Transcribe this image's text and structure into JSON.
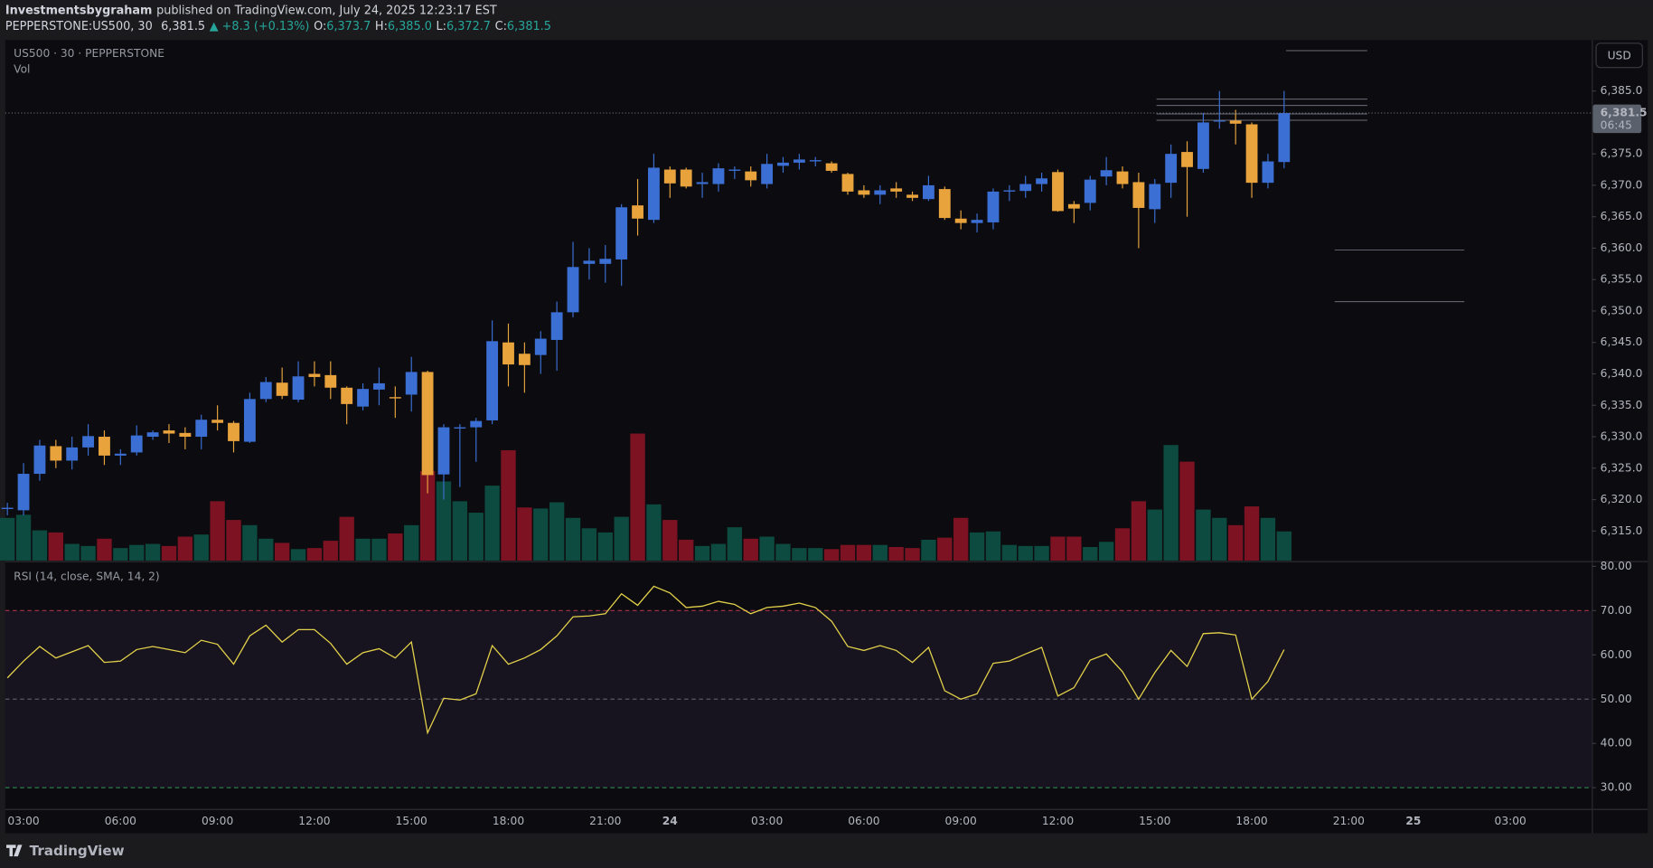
{
  "header": {
    "author": "Investmentsbygraham",
    "published": "published on TradingView.com, July 24, 2025 12:23:17 EST",
    "symbol": "PEPPERSTONE:US500, 30",
    "last": "6,381.5",
    "change": "▲ +8.3 (+0.13%)",
    "ohlc": [
      {
        "label": "O:",
        "value": "6,373.7"
      },
      {
        "label": "H:",
        "value": "6,385.0"
      },
      {
        "label": "L:",
        "value": "6,372.7"
      },
      {
        "label": "C:",
        "value": "6,381.5"
      }
    ]
  },
  "footer": "TradingView",
  "chart_data": [
    {
      "type": "candlestick",
      "title": "US500 · 30 · PEPPERSTONE",
      "volume_title": "Vol",
      "currency": "USD",
      "categories": [
        null,
        "03:00",
        null,
        null,
        null,
        null,
        null,
        "06:00",
        null,
        null,
        null,
        null,
        null,
        "09:00",
        null,
        null,
        null,
        null,
        null,
        "12:00",
        null,
        null,
        null,
        null,
        null,
        "15:00",
        null,
        null,
        null,
        null,
        null,
        "18:00",
        null,
        null,
        null,
        null,
        null,
        "21:00",
        null,
        null,
        null,
        "24",
        null,
        null,
        null,
        null,
        null,
        "03:00",
        null,
        null,
        null,
        null,
        null,
        "06:00",
        null,
        null,
        null,
        null,
        null,
        "09:00",
        null,
        null,
        null,
        null,
        null,
        "12:00",
        null,
        null,
        null,
        null,
        null,
        "15:00",
        null,
        null,
        null,
        null,
        null,
        "18:00",
        null,
        null,
        null,
        null,
        null,
        "21:00",
        null,
        null,
        null,
        "25",
        null,
        null,
        null,
        null,
        null,
        "03:00",
        null,
        null,
        null,
        null
      ],
      "open": [
        6318.5,
        6318.3,
        6324.1,
        6328.5,
        6326.2,
        6328.3,
        6330,
        6327,
        6327.5,
        6330,
        6331,
        6330.6,
        6330,
        6332.7,
        6332.2,
        6329.2,
        6336,
        6338.6,
        6335.9,
        6340,
        6339.8,
        6337.8,
        6334.8,
        6337.5,
        6336.3,
        6336.7,
        6340.3,
        6324,
        6331.3,
        6331.5,
        6332.6,
        6345,
        6343.2,
        6343,
        6345.4,
        6349.8,
        6357.5,
        6357.5,
        6358.2,
        6366.8,
        6364.5,
        6372.5,
        6372.5,
        6370.2,
        6370.2,
        6372.3,
        6372.2,
        6370.2,
        6373.1,
        6373.6,
        6373.8,
        6373.5,
        6371.8,
        6369.2,
        6368.5,
        6369.5,
        6368.5,
        6367.8,
        6369.4,
        6364.7,
        6364,
        6364.1,
        6369,
        6369.1,
        6370.2,
        6372.1,
        6367,
        6367.2,
        6371.4,
        6372.2,
        6370.5,
        6366.2,
        6370.4,
        6375.3,
        6372.6,
        6380.2,
        6380.3,
        6379.7,
        6370.4,
        6373.7,
        null,
        null,
        null,
        null,
        null,
        null,
        null,
        null,
        null,
        null,
        null,
        null,
        null,
        null,
        null,
        null,
        null,
        null
      ],
      "high": [
        6319.5,
        6325.8,
        6329.5,
        6329.5,
        6330,
        6332,
        6331,
        6328,
        6331.8,
        6331,
        6332,
        6331.5,
        6333.5,
        6335,
        6332.5,
        6337,
        6339.5,
        6341,
        6342,
        6342,
        6342,
        6338,
        6338.5,
        6341,
        6338,
        6342.7,
        6340.5,
        6332,
        6332,
        6333,
        6348.5,
        6348,
        6345,
        6346.8,
        6351.5,
        6361,
        6360,
        6360.5,
        6367,
        6371,
        6375,
        6373,
        6372.8,
        6372,
        6373.5,
        6373,
        6373,
        6375,
        6374.5,
        6375,
        6374.5,
        6373.8,
        6372,
        6370,
        6370,
        6370.5,
        6369,
        6371.5,
        6369.8,
        6366,
        6365.5,
        6369.5,
        6370,
        6371.5,
        6372,
        6372.5,
        6367.5,
        6371.5,
        6374.5,
        6373,
        6372,
        6371,
        6376.5,
        6377,
        6381.5,
        6385,
        6382,
        6380,
        6375,
        6385,
        null,
        null,
        null,
        null,
        null,
        null,
        null,
        null,
        null,
        null,
        null,
        null,
        null,
        null,
        null,
        null,
        null,
        null
      ],
      "low": [
        6317.5,
        6317.5,
        6323,
        6325,
        6324.8,
        6327,
        6325.5,
        6325.5,
        6327,
        6329.5,
        6329,
        6328,
        6328,
        6331,
        6327.5,
        6329,
        6335.5,
        6336,
        6335.5,
        6338,
        6336,
        6332,
        6334.2,
        6335,
        6333,
        6334,
        6321,
        6320,
        6322,
        6326,
        6332,
        6338,
        6337,
        6340,
        6340.5,
        6349,
        6355,
        6354.5,
        6354,
        6362,
        6364,
        6368,
        6369.5,
        6368,
        6369,
        6371,
        6369.8,
        6369.5,
        6372,
        6372.5,
        6373,
        6372,
        6368.5,
        6368,
        6367,
        6368,
        6367.5,
        6367.5,
        6364.5,
        6363,
        6362.5,
        6363,
        6367.5,
        6368,
        6369,
        6365.8,
        6364,
        6366,
        6370,
        6369.5,
        6360,
        6364,
        6368,
        6365,
        6372,
        6379,
        6376.5,
        6368,
        6369.5,
        6372.7,
        null,
        null,
        null,
        null,
        null,
        null,
        null,
        null,
        null,
        null,
        null,
        null,
        null,
        null,
        null,
        null,
        null,
        null
      ],
      "close": [
        6318.7,
        6324.1,
        6328.6,
        6326.2,
        6328.3,
        6330.1,
        6327,
        6327.3,
        6330.2,
        6330.7,
        6330.5,
        6330,
        6332.7,
        6332.2,
        6329.3,
        6336,
        6338.7,
        6336.5,
        6339.6,
        6339.5,
        6337.8,
        6335.2,
        6337.6,
        6338.5,
        6336.1,
        6340.3,
        6323.9,
        6331.5,
        6331.5,
        6332.5,
        6345.2,
        6341.5,
        6341.4,
        6345.6,
        6349.8,
        6357,
        6358,
        6358.3,
        6366.5,
        6364.7,
        6372.8,
        6370.3,
        6369.8,
        6370.5,
        6372.7,
        6372.5,
        6370.8,
        6373.4,
        6373.6,
        6374.1,
        6374,
        6372.3,
        6369,
        6368.5,
        6369.2,
        6369,
        6368,
        6370,
        6364.8,
        6364,
        6364.5,
        6369,
        6369.2,
        6370.2,
        6371.1,
        6365.9,
        6366.3,
        6370.9,
        6372.4,
        6370.2,
        6366.4,
        6370.2,
        6375,
        6372.9,
        6380,
        6380.3,
        6379.8,
        6370.4,
        6373.8,
        6381.5,
        null,
        null,
        null,
        null,
        null,
        null,
        null,
        null,
        null,
        null,
        null,
        null,
        null,
        null,
        null,
        null,
        null,
        null
      ],
      "volume": [
        41,
        44,
        29,
        27,
        16,
        14,
        21,
        12,
        15,
        16,
        14,
        23,
        25,
        57,
        39,
        34,
        21,
        17,
        11,
        12,
        19,
        42,
        21,
        21,
        26,
        34,
        86,
        76,
        57,
        46,
        72,
        106,
        51,
        50,
        56,
        41,
        31,
        27,
        42,
        122,
        54,
        39,
        20,
        14,
        16,
        32,
        21,
        23,
        16,
        12,
        12,
        11,
        15,
        15,
        15,
        13,
        12,
        20,
        22,
        41,
        27,
        28,
        15,
        14,
        14,
        23,
        23,
        13,
        18,
        31,
        57,
        49,
        111,
        95,
        49,
        41,
        34,
        52,
        41,
        28,
        null,
        null,
        null,
        null,
        null,
        null,
        null,
        null,
        null,
        null,
        null,
        null,
        null,
        null,
        null,
        null,
        null,
        null
      ],
      "up_color": "#3b6fd4",
      "down_color": "#e8a33d",
      "volume_up_color": "#0d4a3f",
      "volume_down_color": "#7d1322",
      "volume_lim": [
        0,
        500
      ],
      "ylim": [
        6310.3,
        6393.1
      ],
      "yticks": [
        {
          "value": 6315,
          "label": "6,315.0"
        },
        {
          "value": 6320,
          "label": "6,320.0"
        },
        {
          "value": 6325,
          "label": "6,325.0"
        },
        {
          "value": 6330,
          "label": "6,330.0"
        },
        {
          "value": 6335,
          "label": "6,335.0"
        },
        {
          "value": 6340,
          "label": "6,340.0"
        },
        {
          "value": 6345,
          "label": "6,345.0"
        },
        {
          "value": 6350,
          "label": "6,350.0"
        },
        {
          "value": 6355,
          "label": "6,355.0"
        },
        {
          "value": 6360,
          "label": "6,360.0"
        },
        {
          "value": 6365,
          "label": "6,365.0"
        },
        {
          "value": 6370,
          "label": "6,370.0"
        },
        {
          "value": 6375,
          "label": "6,375.0"
        },
        {
          "value": 6385,
          "label": "6,385.0"
        }
      ],
      "last_price": {
        "value": 6381.5,
        "label": "6,381.5"
      },
      "countdown": "06:45",
      "grid": false
    },
    {
      "type": "line",
      "title": "RSI (14, close, SMA, 14, 2)",
      "color": "#e3d14a",
      "values": [
        54.8,
        58.6,
        61.9,
        59.3,
        60.7,
        62.1,
        58.3,
        58.6,
        61.2,
        61.9,
        61.2,
        60.5,
        63.3,
        62.4,
        57.9,
        64.3,
        66.7,
        62.9,
        65.7,
        65.7,
        62.6,
        57.9,
        60.5,
        61.4,
        59.3,
        62.9,
        42.4,
        50.2,
        49.8,
        51.2,
        62.1,
        57.9,
        59.3,
        61.2,
        64.3,
        68.6,
        68.8,
        69.3,
        73.8,
        71.2,
        75.5,
        74.0,
        70.7,
        71.0,
        72.1,
        71.4,
        69.3,
        70.7,
        71.0,
        71.7,
        70.7,
        67.6,
        61.9,
        61.0,
        62.1,
        61.0,
        58.3,
        61.7,
        51.9,
        50.0,
        51.2,
        58.1,
        58.6,
        60.2,
        61.7,
        50.7,
        52.6,
        58.8,
        60.2,
        56.2,
        50.0,
        56.0,
        61.0,
        57.4,
        64.8,
        65.0,
        64.5,
        50.0,
        54.0,
        61.2,
        null,
        null,
        null,
        null,
        null,
        null,
        null,
        null,
        null,
        null,
        null,
        null,
        null,
        null,
        null,
        null,
        null,
        null
      ],
      "ylim": [
        25.2,
        80.95
      ],
      "yticks": [
        {
          "value": 30,
          "label": "30.00"
        },
        {
          "value": 40,
          "label": "40.00"
        },
        {
          "value": 50,
          "label": "50.00"
        },
        {
          "value": 60,
          "label": "60.00"
        },
        {
          "value": 70,
          "label": "70.00"
        },
        {
          "value": 80,
          "label": "80.00"
        }
      ],
      "bands": [
        70,
        50,
        30
      ],
      "band_colors": [
        "#a8334b",
        "#5b5567",
        "#2f8a55"
      ],
      "band_fill": "#17141f",
      "grid": false
    }
  ]
}
